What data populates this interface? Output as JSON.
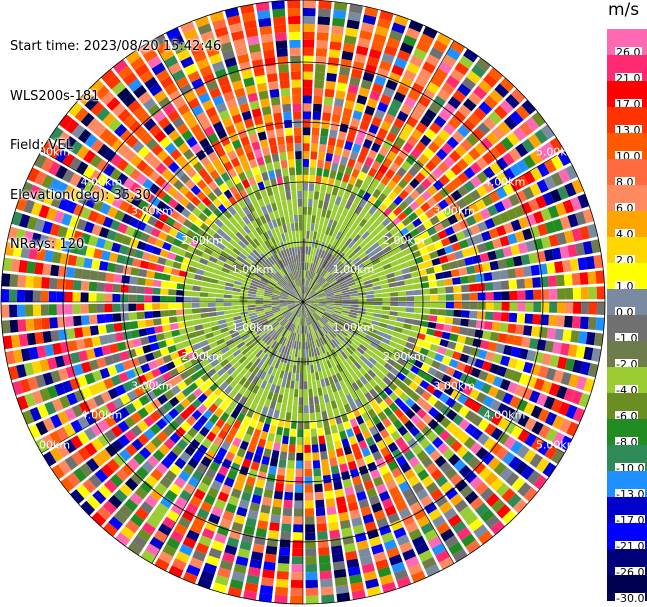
{
  "info": {
    "start_time": "Start time: 2023/08/20 15:42:46",
    "instrument": "WLS200s-181",
    "field": "Field: VEL",
    "elevation": "Elevation(deg): 35.30",
    "nrays": "NRays: 120"
  },
  "colorbar": {
    "unit": "m/s",
    "labels": [
      "26.0",
      "21.0",
      "17.0",
      "13.0",
      "10.0",
      "8.0",
      "6.0",
      "4.0",
      "2.0",
      "1.0",
      "0.0",
      "-1.0",
      "-2.0",
      "-4.0",
      "-6.0",
      "-8.0",
      "-10.0",
      "-13.0",
      "-17.0",
      "-21.0",
      "-26.0",
      "-30.0"
    ],
    "colors": [
      "#ff69b4",
      "#ff2a72",
      "#ff0000",
      "#ff3300",
      "#ff5a00",
      "#ff6a3f",
      "#ff8a60",
      "#ffa500",
      "#ffd700",
      "#ffff00",
      "#7a8aa0",
      "#707070",
      "#6d7c4a",
      "#9acd32",
      "#6b8e23",
      "#228b22",
      "#2e8b57",
      "#1e90ff",
      "#0000cd",
      "#0000ff",
      "#00007a",
      "#000050"
    ]
  },
  "range_labels": [
    "1.00km",
    "2.00km",
    "3.00km",
    "4.00km",
    "5.00km"
  ]
}
